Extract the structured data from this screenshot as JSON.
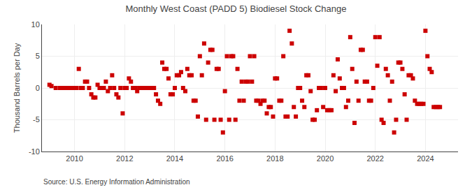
{
  "chart_data": {
    "type": "scatter",
    "title": "Monthly West Coast (PADD 5) Biodiesel Stock Change",
    "y_label": "Thousand Barrels per Day",
    "annotations": [
      "Source: U.S. Energy Information Administration"
    ],
    "color": "#cc0000",
    "marker": "square",
    "grid": true,
    "xlim": [
      2008.7,
      2025.3
    ],
    "xticks": [
      2010,
      2012,
      2014,
      2016,
      2018,
      2020,
      2022,
      2024
    ],
    "ylim": [
      -10,
      10
    ],
    "yticks": [
      -10,
      -5,
      0,
      5,
      10
    ],
    "x": [
      2009.0,
      2009.08,
      2009.25,
      2009.42,
      2009.5,
      2009.58,
      2009.67,
      2009.75,
      2009.83,
      2009.92,
      2010.0,
      2010.08,
      2010.17,
      2010.25,
      2010.33,
      2010.42,
      2010.5,
      2010.58,
      2010.67,
      2010.75,
      2010.83,
      2010.92,
      2011.0,
      2011.08,
      2011.17,
      2011.25,
      2011.33,
      2011.42,
      2011.5,
      2011.58,
      2011.67,
      2011.75,
      2011.83,
      2011.92,
      2012.0,
      2012.08,
      2012.17,
      2012.25,
      2012.33,
      2012.42,
      2012.5,
      2012.58,
      2012.67,
      2012.75,
      2012.83,
      2012.92,
      2013.0,
      2013.08,
      2013.17,
      2013.25,
      2013.33,
      2013.42,
      2013.5,
      2013.58,
      2013.67,
      2013.75,
      2013.83,
      2013.92,
      2014.0,
      2014.08,
      2014.17,
      2014.25,
      2014.33,
      2014.42,
      2014.5,
      2014.58,
      2014.67,
      2014.75,
      2014.83,
      2014.92,
      2015.0,
      2015.08,
      2015.17,
      2015.25,
      2015.33,
      2015.42,
      2015.5,
      2015.58,
      2015.67,
      2015.75,
      2015.83,
      2015.92,
      2016.0,
      2016.08,
      2016.17,
      2016.25,
      2016.33,
      2016.42,
      2016.5,
      2016.58,
      2016.67,
      2016.75,
      2016.83,
      2016.92,
      2017.0,
      2017.08,
      2017.17,
      2017.25,
      2017.33,
      2017.42,
      2017.5,
      2017.58,
      2017.67,
      2017.75,
      2017.83,
      2017.92,
      2018.0,
      2018.08,
      2018.17,
      2018.25,
      2018.33,
      2018.42,
      2018.5,
      2018.58,
      2018.67,
      2018.75,
      2018.83,
      2018.92,
      2019.0,
      2019.08,
      2019.17,
      2019.25,
      2019.33,
      2019.42,
      2019.5,
      2019.58,
      2019.67,
      2019.75,
      2019.83,
      2019.92,
      2020.0,
      2020.08,
      2020.17,
      2020.25,
      2020.33,
      2020.42,
      2020.5,
      2020.58,
      2020.67,
      2020.75,
      2020.83,
      2020.92,
      2021.0,
      2021.08,
      2021.17,
      2021.25,
      2021.33,
      2021.42,
      2021.5,
      2021.58,
      2021.67,
      2021.75,
      2021.83,
      2021.92,
      2022.0,
      2022.08,
      2022.17,
      2022.25,
      2022.33,
      2022.42,
      2022.5,
      2022.58,
      2022.67,
      2022.75,
      2022.83,
      2022.92,
      2023.0,
      2023.08,
      2023.17,
      2023.25,
      2023.33,
      2023.42,
      2023.5,
      2023.58,
      2023.67,
      2023.75,
      2023.83,
      2023.92,
      2024.0,
      2024.08,
      2024.17,
      2024.25,
      2024.33,
      2024.42,
      2024.5,
      2024.58
    ],
    "values": [
      0.5,
      0.3,
      0.0,
      0.0,
      0.0,
      0.0,
      0.0,
      0.0,
      0.0,
      0.0,
      0.0,
      0.0,
      3.0,
      0.0,
      0.0,
      1.0,
      1.0,
      0.0,
      -1.0,
      -1.5,
      -1.5,
      0.5,
      0.0,
      0.0,
      0.0,
      1.0,
      -0.5,
      0.0,
      2.0,
      0.0,
      -1.0,
      -1.5,
      0.0,
      -4.0,
      0.0,
      0.0,
      1.5,
      1.0,
      0.0,
      0.0,
      -0.5,
      0.0,
      0.0,
      0.0,
      0.0,
      0.0,
      0.0,
      0.0,
      0.0,
      -1.0,
      -2.0,
      -2.5,
      4.0,
      3.0,
      3.0,
      1.5,
      -1.0,
      -1.0,
      0.0,
      2.0,
      2.0,
      2.5,
      0.0,
      -0.5,
      3.0,
      2.0,
      2.0,
      -2.0,
      -2.0,
      -4.5,
      5.0,
      2.0,
      7.0,
      -5.0,
      4.0,
      6.0,
      6.0,
      -5.0,
      3.0,
      3.0,
      -5.0,
      -7.0,
      -0.5,
      5.0,
      -5.0,
      5.0,
      5.0,
      -5.0,
      3.0,
      -2.0,
      1.0,
      -2.0,
      1.0,
      1.0,
      5.0,
      1.0,
      5.0,
      -2.0,
      -2.0,
      -2.5,
      -2.0,
      -2.0,
      -4.0,
      -3.0,
      -3.0,
      -4.5,
      1.5,
      1.5,
      -2.0,
      -2.0,
      5.0,
      -4.5,
      -4.5,
      9.0,
      7.0,
      -3.0,
      -4.5,
      0.0,
      0.0,
      -2.0,
      -3.0,
      2.0,
      2.0,
      -0.5,
      -5.0,
      -5.0,
      -3.5,
      0.0,
      0.0,
      -3.0,
      0.0,
      -3.5,
      -3.5,
      -3.5,
      2.0,
      -0.5,
      4.5,
      1.5,
      0.0,
      0.0,
      -3.0,
      -2.0,
      8.0,
      3.0,
      -5.5,
      1.0,
      -2.0,
      6.0,
      6.0,
      1.0,
      1.0,
      -2.0,
      -2.0,
      0.0,
      8.0,
      3.5,
      8.0,
      -5.0,
      -5.5,
      3.0,
      2.0,
      -2.0,
      1.0,
      -7.0,
      -5.0,
      4.0,
      4.0,
      3.0,
      -1.0,
      -5.0,
      2.0,
      2.0,
      1.5,
      -2.0,
      -2.5,
      -2.5,
      -2.5,
      -2.5,
      9.0,
      5.0,
      3.0,
      2.5,
      -3.0,
      -3.0,
      -3.0,
      -3.0
    ]
  }
}
